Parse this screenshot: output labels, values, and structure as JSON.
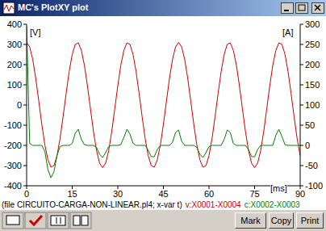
{
  "window": {
    "title": "MC's PlotXY plot",
    "buttons": [
      "Mark",
      "Copy",
      "Print"
    ]
  },
  "chart_data": {
    "type": "line",
    "subtitle": "(file CIRCUITO-CARGA-NON-LINEAR.pl4; x-var t)",
    "xlabel": "[ms]",
    "ylabel": "[V]",
    "y2label": "[A]",
    "xlim": [
      0,
      90
    ],
    "xticks": [
      0,
      15,
      30,
      45,
      60,
      75,
      90
    ],
    "ylim": [
      -400,
      400
    ],
    "yticks": [
      -400,
      -300,
      -200,
      -100,
      0,
      100,
      200,
      300,
      400
    ],
    "y2lim": [
      -100,
      300
    ],
    "y2ticks": [
      -100,
      -50,
      0,
      50,
      100,
      150,
      200,
      250,
      300
    ],
    "grid": false,
    "x": [
      0,
      1,
      2,
      3,
      4,
      5,
      6,
      7,
      8,
      9,
      10,
      11,
      12,
      13,
      14,
      15,
      16,
      17,
      18,
      19,
      20,
      21,
      22,
      23,
      24,
      25,
      26,
      27,
      28,
      29,
      30,
      31,
      32,
      33,
      34,
      35,
      36,
      37,
      38,
      39,
      40,
      41,
      42,
      43,
      44,
      45,
      46,
      47,
      48,
      49,
      50,
      51,
      52,
      53,
      54,
      55,
      56,
      57,
      58,
      59,
      60,
      61,
      62,
      63,
      64,
      65,
      66,
      67,
      68,
      69,
      70,
      71,
      72,
      73,
      74,
      75,
      76,
      77,
      78,
      79,
      80,
      81,
      82,
      83,
      84,
      85,
      86,
      87,
      88,
      89,
      90
    ],
    "series": [
      {
        "name": "v:X0001-X0004",
        "color": "#cc0000",
        "values": [
          310,
          288,
          226,
          132,
          19,
          -96,
          -198,
          -271,
          -308,
          -300,
          -251,
          -166,
          -58,
          58,
          166,
          251,
          300,
          308,
          271,
          198,
          96,
          -19,
          -132,
          -226,
          -288,
          -310,
          -288,
          -226,
          -132,
          -19,
          96,
          198,
          271,
          308,
          300,
          251,
          166,
          58,
          -58,
          -166,
          -251,
          -300,
          -308,
          -271,
          -198,
          -96,
          19,
          132,
          226,
          288,
          310,
          288,
          226,
          132,
          19,
          -96,
          -198,
          -271,
          -308,
          -300,
          -251,
          -166,
          -58,
          58,
          166,
          251,
          300,
          308,
          271,
          198,
          96,
          -19,
          -132,
          -226,
          -288,
          -310,
          -288,
          -226,
          -132,
          -19,
          96,
          198,
          271,
          308,
          300,
          251,
          166,
          58,
          -58,
          -166,
          -251
        ]
      },
      {
        "name": "c:X0002-X0003",
        "color": "#008000",
        "axis": "y2",
        "values": [
          295,
          5,
          0,
          0,
          0,
          0,
          -15,
          -60,
          -80,
          -65,
          -25,
          -3,
          0,
          0,
          0,
          5,
          30,
          40,
          15,
          2,
          0,
          0,
          0,
          -5,
          -22,
          -30,
          -18,
          -3,
          0,
          0,
          0,
          2,
          20,
          40,
          28,
          5,
          0,
          0,
          0,
          0,
          -12,
          -28,
          -28,
          -10,
          0,
          0,
          0,
          0,
          8,
          32,
          38,
          10,
          0,
          0,
          0,
          0,
          -5,
          -22,
          -30,
          -18,
          -3,
          0,
          0,
          0,
          0,
          15,
          38,
          32,
          5,
          0,
          0,
          0,
          0,
          -10,
          -28,
          -28,
          -10,
          0,
          0,
          0,
          0,
          0,
          25,
          40,
          22,
          2,
          0,
          0,
          0,
          0,
          0
        ]
      }
    ]
  }
}
